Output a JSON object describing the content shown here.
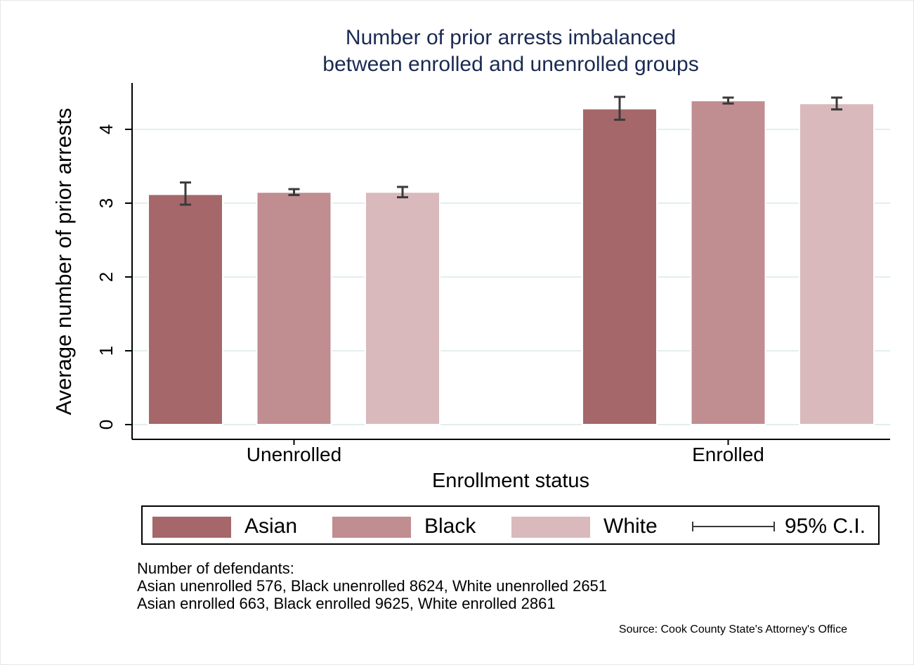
{
  "colors": {
    "asian": "#a5676a",
    "black": "#c08d90",
    "white": "#d9b9bc",
    "errorbar": "#3a3a3a",
    "grid": "#e3eeee",
    "title": "#1a2a52"
  },
  "chart_data": {
    "type": "bar",
    "title": [
      "Number of prior arrests imbalanced",
      "between enrolled and unenrolled groups"
    ],
    "xlabel": "Enrollment status",
    "ylabel": "Average number of prior arrests",
    "categories": [
      "Unenrolled",
      "Enrolled"
    ],
    "yticks": [
      0,
      1,
      2,
      3,
      4
    ],
    "ylim": [
      0,
      4.6
    ],
    "grid": true,
    "series": [
      {
        "name": "Asian",
        "values": [
          3.12,
          4.28
        ],
        "ci_low": [
          2.98,
          4.13
        ],
        "ci_high": [
          3.28,
          4.44
        ]
      },
      {
        "name": "Black",
        "values": [
          3.15,
          4.39
        ],
        "ci_low": [
          3.11,
          4.35
        ],
        "ci_high": [
          3.19,
          4.43
        ]
      },
      {
        "name": "White",
        "values": [
          3.15,
          4.35
        ],
        "ci_low": [
          3.08,
          4.27
        ],
        "ci_high": [
          3.22,
          4.43
        ]
      }
    ]
  },
  "legend": {
    "items": [
      "Asian",
      "Black",
      "White"
    ],
    "ci_label": "95% C.I.",
    "placement": "bottom"
  },
  "notes": {
    "heading": "Number of defendants:",
    "line1": "Asian unenrolled 576, Black unenrolled 8624, White unenrolled 2651",
    "line2": "Asian enrolled 663, Black enrolled 9625, White enrolled 2861"
  },
  "source": "Source: Cook County State's Attorney's Office"
}
